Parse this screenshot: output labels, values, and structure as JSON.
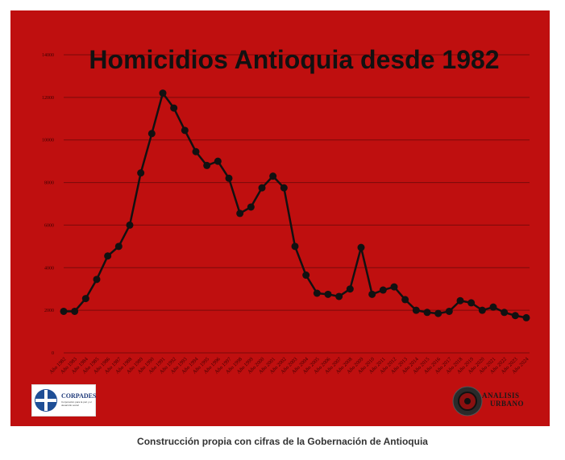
{
  "caption": "Construcción propia con cifras de la Gobernación de Antioquia",
  "logos": {
    "left": {
      "text": "CORPADES",
      "subtext": "Corporación para la paz y el desarrollo social"
    },
    "right": {
      "line1": "ANALISIS",
      "line2": "URBANO"
    }
  },
  "chart_data": {
    "type": "line",
    "title": "Homicidios Antioquia desde 1982",
    "ylim": [
      0,
      14000
    ],
    "yticks": [
      0,
      2000,
      4000,
      6000,
      8000,
      10000,
      12000,
      14000
    ],
    "ytick_labels": [
      "0",
      "2000",
      "4000",
      "6000",
      "8000",
      "10000",
      "12000",
      "14000"
    ],
    "grid": true,
    "colors": {
      "background": "#bf0f0f",
      "line": "#111111",
      "grid": "#7a0a0a",
      "title": "#111111"
    },
    "categories": [
      "Año 1982",
      "Año 1983",
      "Año 1984",
      "Año 1985",
      "Año 1986",
      "Año 1987",
      "Año 1988",
      "Año 1989",
      "Año 1990",
      "Año 1991",
      "Año 1992",
      "Año 1993",
      "Año 1994",
      "Año 1995",
      "Año 1996",
      "Año 1997",
      "Año 1998",
      "Año 1999",
      "Año 2000",
      "Año 2001",
      "Año 2002",
      "Año 2003",
      "Año 2004",
      "Año 2005",
      "Año 2006",
      "Año 2007",
      "Año 2008",
      "Año 2009",
      "Año 2010",
      "Año 2011",
      "Año 2012",
      "Año 2013",
      "Año 2014",
      "Año 2015",
      "Año 2016",
      "Año 2017",
      "Año 2018",
      "Año 2019",
      "Año 2020",
      "Año 2021",
      "Año 2022",
      "Año 2023",
      "Año 2024"
    ],
    "values": [
      1950,
      1950,
      2550,
      3450,
      4550,
      5000,
      6000,
      8450,
      10300,
      12200,
      11500,
      10450,
      9450,
      8800,
      9000,
      8200,
      6550,
      6850,
      7750,
      8300,
      7750,
      5000,
      3650,
      2800,
      2750,
      2650,
      3000,
      4950,
      2750,
      2950,
      3100,
      2500,
      2000,
      1900,
      1850,
      1950,
      2450,
      2350,
      2000,
      2150,
      1900,
      1750,
      1650
    ]
  }
}
